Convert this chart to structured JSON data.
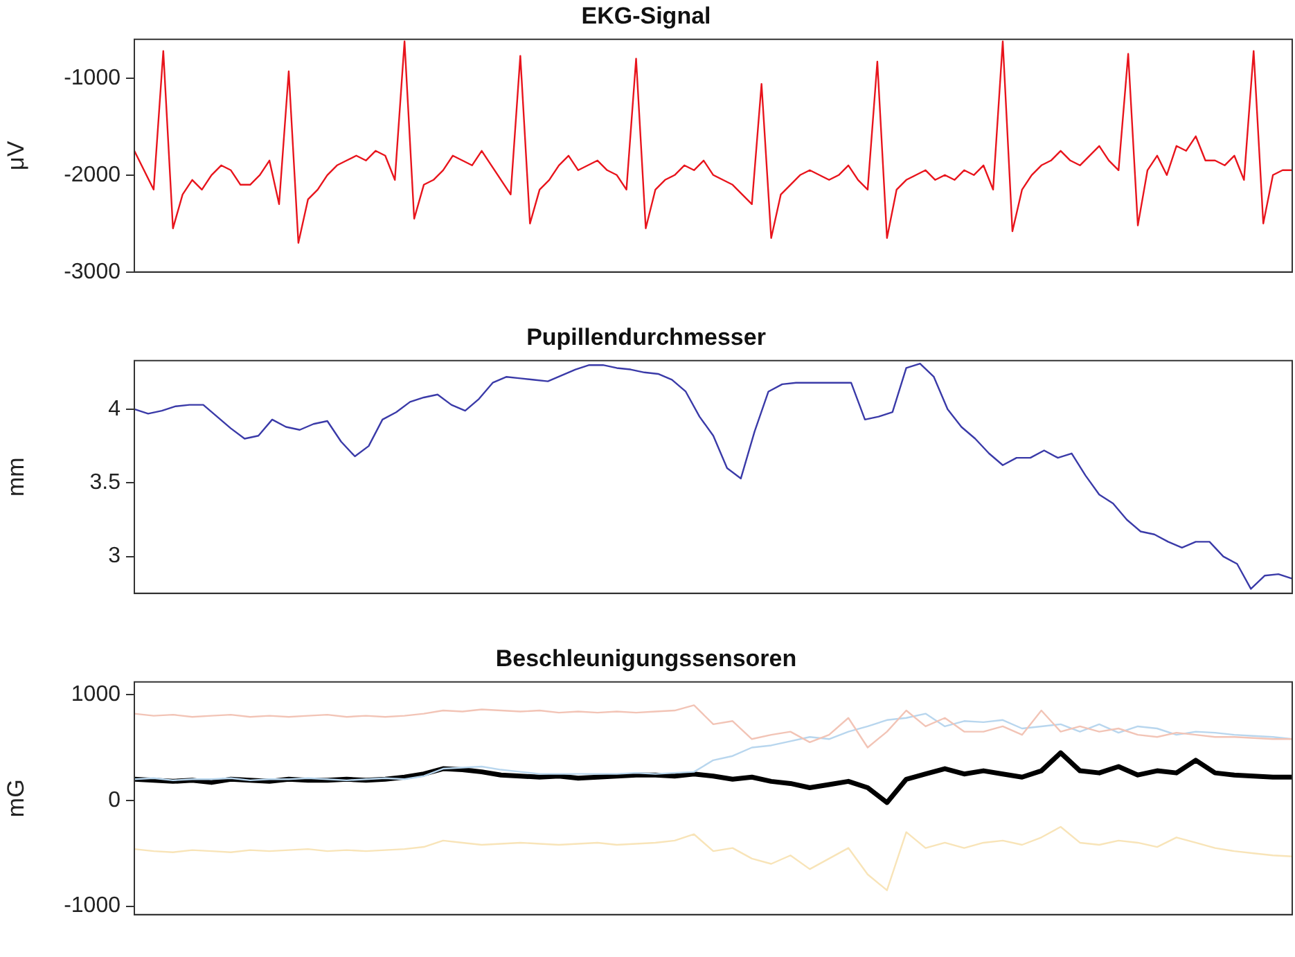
{
  "chart_data": [
    {
      "type": "line",
      "title": "EKG-Signal",
      "ylabel": "μV",
      "ylim": [
        -3000,
        -600
      ],
      "yticks": [
        -3000,
        -2000,
        -1000
      ],
      "grid": false,
      "legend": false,
      "tick_labels": "y",
      "marker": "none",
      "line_style": "solid",
      "categories": [
        null,
        null,
        null,
        null,
        null,
        null,
        null,
        null,
        null,
        null,
        null,
        null,
        null,
        null,
        null,
        null,
        null,
        null,
        null,
        null,
        null,
        null,
        null,
        null,
        null,
        null,
        null,
        null,
        null,
        null,
        null,
        null,
        null,
        null,
        null,
        null,
        null,
        null,
        null,
        null,
        null,
        null,
        null,
        null,
        null,
        null,
        null,
        null,
        null,
        null,
        null,
        null,
        null,
        null,
        null,
        null,
        null,
        null,
        null,
        null,
        null,
        null,
        null,
        null,
        null,
        null,
        null,
        null,
        null,
        null,
        null,
        null,
        null,
        null,
        null,
        null,
        null,
        null,
        null,
        null,
        null,
        null,
        null,
        null,
        null,
        null,
        null,
        null,
        null,
        null,
        null,
        null,
        null,
        null,
        null,
        null,
        null,
        null,
        null,
        null,
        null,
        null,
        null,
        null,
        null,
        null,
        null,
        null,
        null,
        null,
        null,
        null,
        null,
        null,
        null,
        null,
        null,
        null,
        null,
        null,
        null
      ],
      "series": [
        {
          "color": "#e8141c",
          "values": [
            -1750,
            -1950,
            -2150,
            -720,
            -2550,
            -2200,
            -2050,
            -2150,
            -2000,
            -1900,
            -1950,
            -2100,
            -2100,
            -2000,
            -1850,
            -2300,
            -930,
            -2700,
            -2250,
            -2150,
            -2000,
            -1900,
            -1850,
            -1800,
            -1850,
            -1750,
            -1800,
            -2050,
            -620,
            -2450,
            -2100,
            -2050,
            -1950,
            -1800,
            -1850,
            -1900,
            -1750,
            -1900,
            -2050,
            -2200,
            -770,
            -2500,
            -2150,
            -2050,
            -1900,
            -1800,
            -1950,
            -1900,
            -1850,
            -1950,
            -2000,
            -2150,
            -800,
            -2550,
            -2150,
            -2050,
            -2000,
            -1900,
            -1950,
            -1850,
            -2000,
            -2050,
            -2100,
            -2200,
            -2300,
            -1060,
            -2650,
            -2200,
            -2100,
            -2000,
            -1950,
            -2000,
            -2050,
            -2000,
            -1900,
            -2050,
            -2150,
            -830,
            -2650,
            -2150,
            -2050,
            -2000,
            -1950,
            -2050,
            -2000,
            -2050,
            -1950,
            -2000,
            -1900,
            -2150,
            -620,
            -2580,
            -2150,
            -2000,
            -1900,
            -1850,
            -1750,
            -1850,
            -1900,
            -1800,
            -1700,
            -1850,
            -1950,
            -750,
            -2520,
            -1950,
            -1800,
            -2000,
            -1700,
            -1750,
            -1600,
            -1850,
            -1850,
            -1900,
            -1800,
            -2050,
            -720,
            -2500,
            -2000,
            -1950,
            -1950
          ]
        }
      ]
    },
    {
      "type": "line",
      "title": "Pupillendurchmesser",
      "ylabel": "mm",
      "ylim": [
        2.75,
        4.33
      ],
      "yticks": [
        3,
        3.5,
        4
      ],
      "grid": false,
      "legend": false,
      "tick_labels": "y",
      "marker": "none",
      "line_style": "solid",
      "categories": [
        null,
        null,
        null,
        null,
        null,
        null,
        null,
        null,
        null,
        null,
        null,
        null,
        null,
        null,
        null,
        null,
        null,
        null,
        null,
        null,
        null,
        null,
        null,
        null,
        null,
        null,
        null,
        null,
        null,
        null,
        null,
        null,
        null,
        null,
        null,
        null,
        null,
        null,
        null,
        null,
        null,
        null,
        null,
        null,
        null,
        null,
        null,
        null,
        null,
        null,
        null,
        null,
        null,
        null,
        null,
        null,
        null,
        null,
        null,
        null,
        null,
        null,
        null,
        null,
        null,
        null,
        null,
        null,
        null,
        null,
        null,
        null,
        null,
        null,
        null,
        null,
        null,
        null,
        null,
        null,
        null,
        null,
        null,
        null,
        null
      ],
      "series": [
        {
          "color": "#3a3aa8",
          "values": [
            4.0,
            3.97,
            3.99,
            4.02,
            4.03,
            4.03,
            3.95,
            3.87,
            3.8,
            3.82,
            3.93,
            3.88,
            3.86,
            3.9,
            3.92,
            3.78,
            3.68,
            3.75,
            3.93,
            3.98,
            4.05,
            4.08,
            4.1,
            4.03,
            3.99,
            4.07,
            4.18,
            4.22,
            4.21,
            4.2,
            4.19,
            4.23,
            4.27,
            4.3,
            4.3,
            4.28,
            4.27,
            4.25,
            4.24,
            4.2,
            4.12,
            3.95,
            3.82,
            3.6,
            3.53,
            3.85,
            4.12,
            4.17,
            4.18,
            4.18,
            4.18,
            4.18,
            4.18,
            3.93,
            3.95,
            3.98,
            4.28,
            4.31,
            4.22,
            4.0,
            3.88,
            3.8,
            3.7,
            3.62,
            3.67,
            3.67,
            3.72,
            3.67,
            3.7,
            3.55,
            3.42,
            3.36,
            3.25,
            3.17,
            3.15,
            3.1,
            3.06,
            3.1,
            3.1,
            3.0,
            2.95,
            2.78,
            2.87,
            2.88,
            2.85
          ]
        }
      ]
    },
    {
      "type": "line",
      "title": "Beschleunigungssensoren",
      "ylabel": "mG",
      "ylim": [
        -1080,
        1120
      ],
      "yticks": [
        -1000,
        0,
        1000
      ],
      "grid": false,
      "legend": false,
      "tick_labels": "y",
      "marker": "none",
      "line_style": "solid",
      "categories": [
        null,
        null,
        null,
        null,
        null,
        null,
        null,
        null,
        null,
        null,
        null,
        null,
        null,
        null,
        null,
        null,
        null,
        null,
        null,
        null,
        null,
        null,
        null,
        null,
        null,
        null,
        null,
        null,
        null,
        null,
        null,
        null,
        null,
        null,
        null,
        null,
        null,
        null,
        null,
        null,
        null,
        null,
        null,
        null,
        null,
        null,
        null,
        null,
        null,
        null,
        null,
        null,
        null,
        null,
        null,
        null,
        null,
        null,
        null,
        null,
        null
      ],
      "series": [
        {
          "color": "#f2c4b6",
          "values": [
            820,
            800,
            810,
            790,
            800,
            810,
            790,
            800,
            790,
            800,
            810,
            790,
            800,
            790,
            800,
            820,
            850,
            840,
            860,
            850,
            840,
            850,
            830,
            840,
            830,
            840,
            830,
            840,
            850,
            900,
            720,
            750,
            580,
            620,
            650,
            550,
            620,
            780,
            500,
            650,
            850,
            700,
            780,
            650,
            650,
            700,
            620,
            850,
            650,
            700,
            650,
            680,
            620,
            600,
            640,
            620,
            600,
            600,
            590,
            580,
            580
          ]
        },
        {
          "color": "#b8d6ee",
          "values": [
            200,
            210,
            190,
            200,
            200,
            210,
            190,
            200,
            200,
            210,
            200,
            190,
            200,
            210,
            200,
            230,
            300,
            310,
            320,
            290,
            270,
            250,
            250,
            250,
            250,
            250,
            260,
            250,
            260,
            270,
            380,
            420,
            500,
            520,
            560,
            600,
            580,
            650,
            700,
            760,
            780,
            820,
            700,
            750,
            740,
            760,
            680,
            700,
            720,
            650,
            720,
            640,
            700,
            680,
            620,
            650,
            640,
            620,
            610,
            600,
            580
          ]
        },
        {
          "color": "#f8e4b8",
          "values": [
            -460,
            -480,
            -490,
            -470,
            -480,
            -490,
            -470,
            -480,
            -470,
            -460,
            -480,
            -470,
            -480,
            -470,
            -460,
            -440,
            -380,
            -400,
            -420,
            -410,
            -400,
            -410,
            -420,
            -410,
            -400,
            -420,
            -410,
            -400,
            -380,
            -320,
            -480,
            -450,
            -550,
            -600,
            -520,
            -650,
            -550,
            -450,
            -700,
            -850,
            -300,
            -450,
            -400,
            -450,
            -400,
            -380,
            -420,
            -350,
            -250,
            -400,
            -420,
            -380,
            -400,
            -440,
            -350,
            -400,
            -450,
            -480,
            -500,
            -520,
            -530
          ]
        },
        {
          "color": "#000000",
          "values": [
            200,
            190,
            180,
            190,
            170,
            200,
            190,
            180,
            200,
            190,
            190,
            200,
            190,
            200,
            220,
            250,
            300,
            290,
            270,
            240,
            230,
            220,
            230,
            210,
            220,
            230,
            240,
            240,
            230,
            250,
            230,
            200,
            220,
            180,
            160,
            120,
            150,
            180,
            120,
            -20,
            200,
            250,
            300,
            250,
            280,
            250,
            220,
            280,
            450,
            280,
            260,
            320,
            240,
            280,
            260,
            380,
            260,
            240,
            230,
            220,
            220
          ]
        }
      ]
    }
  ]
}
